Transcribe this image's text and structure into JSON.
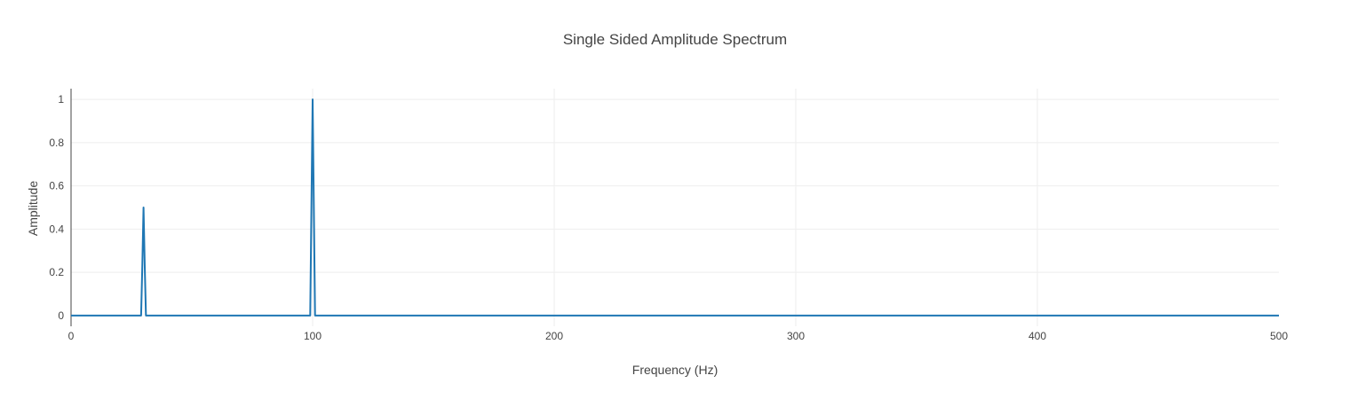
{
  "chart_data": {
    "type": "line",
    "title": "Single Sided Amplitude Spectrum",
    "xlabel": "Frequency (Hz)",
    "ylabel": "Amplitude",
    "xlim": [
      0,
      500
    ],
    "ylim": [
      -0.05,
      1.05
    ],
    "x_ticks": [
      0,
      100,
      200,
      300,
      400,
      500
    ],
    "x_tick_labels": [
      "0",
      "100",
      "200",
      "300",
      "400",
      "500"
    ],
    "y_ticks": [
      0,
      0.2,
      0.4,
      0.6,
      0.8,
      1
    ],
    "y_tick_labels": [
      "0",
      "0.2",
      "0.4",
      "0.6",
      "0.8",
      "1"
    ],
    "grid": true,
    "legend": "none",
    "series": [
      {
        "color": "#1f77b4",
        "x": [
          0,
          29,
          29.5,
          30,
          30.5,
          31,
          99,
          99.5,
          100,
          100.5,
          101,
          500
        ],
        "y": [
          0,
          0,
          0.23,
          0.5,
          0.23,
          0,
          0,
          0.5,
          1,
          0.5,
          0,
          0
        ]
      }
    ]
  }
}
